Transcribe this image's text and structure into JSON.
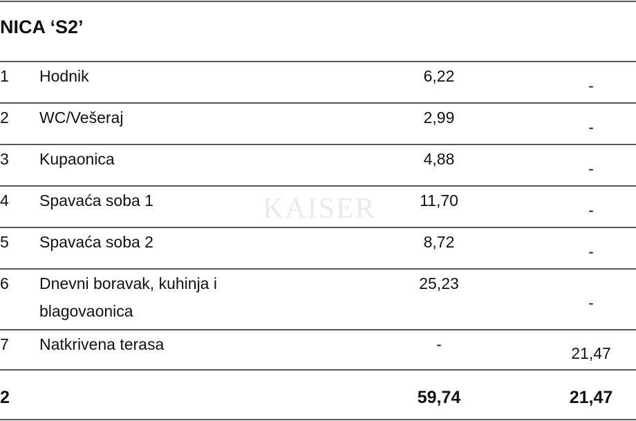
{
  "header": {
    "title": "NICA ‘S2’"
  },
  "watermark": "KAISER",
  "table": {
    "rows": [
      [
        "1",
        "Hodnik",
        "6,22",
        "-"
      ],
      [
        "2",
        "WC/Vešeraj",
        "2,99",
        "-"
      ],
      [
        "3",
        "Kupaonica",
        "4,88",
        "-"
      ],
      [
        "4",
        "Spavaća soba 1",
        "11,70",
        "-"
      ],
      [
        "5",
        "Spavaća soba 2",
        "8,72",
        "-"
      ],
      [
        "6",
        "Dnevni boravak, kuhinja i blagovaonica",
        "25,23",
        "-"
      ],
      [
        "7",
        "Natkrivena terasa",
        "-",
        "21,47"
      ]
    ],
    "total": [
      "2",
      "59,74",
      "21,47"
    ]
  }
}
